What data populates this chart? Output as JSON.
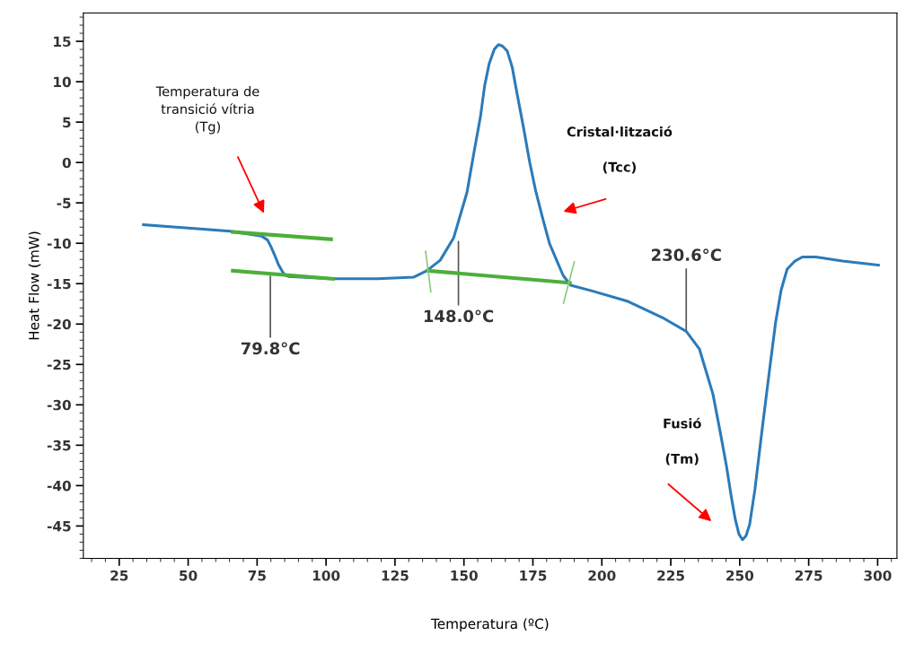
{
  "chart_data": {
    "type": "line",
    "xlabel": "Temperatura (ºC)",
    "ylabel": "Heat Flow (mW)",
    "xlim": [
      12,
      307
    ],
    "ylim": [
      -49,
      18.5
    ],
    "xticks": [
      25,
      50,
      75,
      100,
      125,
      150,
      175,
      200,
      225,
      250,
      275,
      300
    ],
    "yticks": [
      -45,
      -40,
      -35,
      -30,
      -25,
      -20,
      -15,
      -10,
      -5,
      0,
      5,
      10,
      15
    ],
    "grid": false,
    "marker": "none",
    "line_style": "solid",
    "series": [
      {
        "color": "#2b7bba",
        "x": [
          33.8,
          65.2,
          76.6,
          78.8,
          80.0,
          81.4,
          82.7,
          84.0,
          85.0,
          86.3,
          102.5,
          118.7,
          131.7,
          136.5,
          141.4,
          146.3,
          151.1,
          153.5,
          156.0,
          157.5,
          159.2,
          161.0,
          162.5,
          164.0,
          165.7,
          167.5,
          169.0,
          171.5,
          173.8,
          176.0,
          178.7,
          181.0,
          183.6,
          186.0,
          188.7,
          196.5,
          209.5,
          222.5,
          230.6,
          235.4,
          240.3,
          243.0,
          245.2,
          247.0,
          248.4,
          249.7,
          251.0,
          252.3,
          253.6,
          255.5,
          258.1,
          260.5,
          263.0,
          265.0,
          267.2,
          270.0,
          272.7,
          277.6,
          287.3,
          300.3
        ],
        "values": [
          -7.7,
          -8.5,
          -9.1,
          -9.6,
          -10.4,
          -11.5,
          -12.6,
          -13.4,
          -13.9,
          -14.1,
          -14.4,
          -14.4,
          -14.2,
          -13.4,
          -12.1,
          -9.3,
          -3.7,
          1.0,
          5.7,
          9.5,
          12.3,
          14.0,
          14.6,
          14.4,
          13.8,
          11.8,
          9.0,
          4.5,
          0.1,
          -3.5,
          -7.1,
          -10.0,
          -12.1,
          -14.0,
          -15.2,
          -15.9,
          -17.2,
          -19.3,
          -20.9,
          -23.1,
          -28.7,
          -33.5,
          -37.6,
          -41.5,
          -44.2,
          -46.0,
          -46.7,
          -46.2,
          -44.8,
          -40.5,
          -33.1,
          -26.5,
          -19.8,
          -15.8,
          -13.2,
          -12.2,
          -11.7,
          -11.7,
          -12.2,
          -12.7
        ]
      },
      {
        "color": "#4caf3a",
        "x": [
          66.2,
          101.8
        ],
        "values": [
          -8.6,
          -9.5
        ]
      },
      {
        "color": "#4caf3a",
        "x": [
          66.2,
          102.5
        ],
        "values": [
          -13.4,
          -14.4
        ]
      },
      {
        "color": "#4caf3a",
        "x": [
          136.9,
          188.4
        ],
        "values": [
          -13.4,
          -14.9
        ]
      },
      {
        "color": "#8cc97e",
        "x": [
          136.1,
          138.0
        ],
        "values": [
          -11.0,
          -16.0
        ]
      },
      {
        "color": "#8cc97e",
        "x": [
          190.0,
          186.1
        ],
        "values": [
          -12.3,
          -17.4
        ]
      }
    ],
    "annotations": [
      {
        "text": "79.8°C",
        "x": 79.8,
        "y": -14.1
      },
      {
        "text": "148.0°C",
        "x": 148.0,
        "y": -13.7
      },
      {
        "text": "230.6°C",
        "x": 230.6,
        "y": -20.7
      },
      "Temperatura de\ntransició vítria\n(Tg)",
      "Cristal·lització\n\n(Tcc)",
      "Fusió\n\n(Tm)"
    ]
  }
}
